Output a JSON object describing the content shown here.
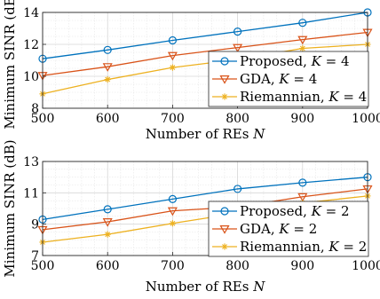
{
  "chart_data": [
    {
      "type": "line",
      "xlabel": "Number of REs N",
      "ylabel": "Minimum SINR (dB)",
      "x": [
        500,
        600,
        700,
        800,
        900,
        1000
      ],
      "xlim": [
        500,
        1000
      ],
      "ylim": [
        8,
        14
      ],
      "xticks": [
        500,
        600,
        700,
        800,
        900,
        1000
      ],
      "yticks": [
        8,
        10,
        12,
        14
      ],
      "grid": true,
      "minor_grid": true,
      "legend_position": "bottom-right",
      "series": [
        {
          "name": "Proposed, K = 4",
          "color": "#0072BD",
          "marker": "circle",
          "values": [
            11.1,
            11.65,
            12.25,
            12.8,
            13.35,
            14.0
          ]
        },
        {
          "name": "GDA, K = 4",
          "color": "#D95319",
          "marker": "triangle-down",
          "values": [
            10.05,
            10.6,
            11.3,
            11.8,
            12.3,
            12.75
          ]
        },
        {
          "name": "Riemannian, K = 4",
          "color": "#EDB120",
          "marker": "asterisk",
          "values": [
            8.9,
            9.8,
            10.55,
            11.05,
            11.75,
            12.0
          ]
        }
      ]
    },
    {
      "type": "line",
      "xlabel": "Number of REs N",
      "ylabel": "Minimum SINR (dB)",
      "x": [
        500,
        600,
        700,
        800,
        900,
        1000
      ],
      "xlim": [
        500,
        1000
      ],
      "ylim": [
        7,
        13
      ],
      "xticks": [
        500,
        600,
        700,
        800,
        900,
        1000
      ],
      "yticks": [
        7,
        9,
        11,
        13
      ],
      "grid": true,
      "minor_grid": true,
      "legend_position": "bottom-right",
      "series": [
        {
          "name": "Proposed, K = 2",
          "color": "#0072BD",
          "marker": "circle",
          "values": [
            9.3,
            9.95,
            10.6,
            11.25,
            11.65,
            12.0
          ]
        },
        {
          "name": "GDA, K = 2",
          "color": "#D95319",
          "marker": "triangle-down",
          "values": [
            8.65,
            9.15,
            9.85,
            10.1,
            10.75,
            11.25
          ]
        },
        {
          "name": "Riemannian, K = 2",
          "color": "#EDB120",
          "marker": "asterisk",
          "values": [
            7.85,
            8.35,
            9.05,
            9.7,
            10.35,
            10.8
          ]
        }
      ]
    }
  ]
}
